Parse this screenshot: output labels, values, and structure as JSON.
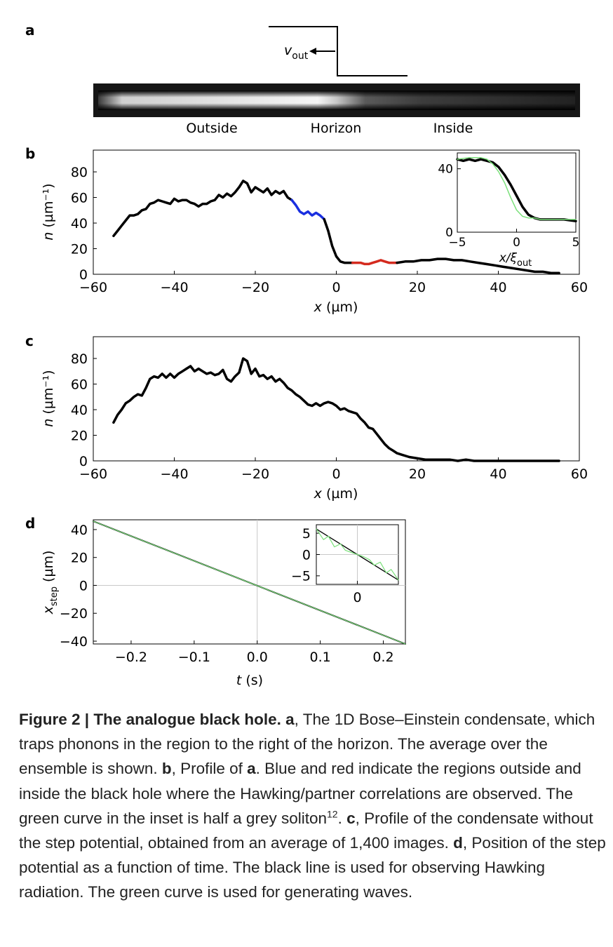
{
  "panel_labels": {
    "a": "a",
    "b": "b",
    "c": "c",
    "d": "d"
  },
  "panel_a": {
    "velocity_symbol": "v",
    "velocity_subscript": "out",
    "region_labels": [
      "Outside",
      "Horizon",
      "Inside"
    ]
  },
  "colors": {
    "profile": "#000000",
    "outside_region": "#1a2fe0",
    "inside_region": "#d42a1e",
    "soliton": "#7be07b",
    "grid": "#c8c8c8"
  },
  "axes": {
    "n_label_symbol": "n",
    "n_label_unit": "(µm⁻¹)",
    "x_label_symbol": "x",
    "x_label_unit": "(µm)",
    "inset_x_label": "x/ξ",
    "inset_x_subscript": "out",
    "d_y_symbol": "x",
    "d_y_subscript": "step",
    "d_y_unit": "(µm)",
    "d_x_symbol": "t",
    "d_x_unit": "(s)"
  },
  "chart_data": [
    {
      "id": "b",
      "type": "line",
      "xlabel": "x (µm)",
      "ylabel": "n (µm⁻¹)",
      "xlim": [
        -60,
        60
      ],
      "ylim": [
        0,
        97
      ],
      "xticks": [
        "−60",
        "−40",
        "−20",
        "0",
        "20",
        "40",
        "60"
      ],
      "yticks": [
        "0",
        "20",
        "40",
        "60",
        "80"
      ],
      "series": [
        {
          "name": "profile",
          "color": "#000000",
          "x": [
            -55,
            -54,
            -53,
            -52,
            -51,
            -50,
            -49,
            -48,
            -47,
            -46,
            -45,
            -44,
            -43,
            -42,
            -41,
            -40,
            -39,
            -38,
            -37,
            -36,
            -35,
            -34,
            -33,
            -32,
            -31,
            -30,
            -29,
            -28,
            -27,
            -26,
            -25,
            -24,
            -23,
            -22,
            -21,
            -20,
            -19,
            -18,
            -17,
            -16,
            -15,
            -14,
            -13,
            -12,
            -11
          ],
          "y": [
            30,
            34,
            38,
            42,
            46,
            46,
            47,
            50,
            51,
            55,
            56,
            58,
            57,
            56,
            55,
            59,
            57,
            58,
            58,
            56,
            55,
            53,
            55,
            55,
            57,
            58,
            62,
            60,
            63,
            61,
            64,
            68,
            73,
            71,
            64,
            68,
            66,
            64,
            67,
            62,
            65,
            63,
            65,
            60,
            58
          ]
        },
        {
          "name": "outside",
          "color": "#1a2fe0",
          "x": [
            -11,
            -10,
            -9,
            -8,
            -7,
            -6,
            -5,
            -4,
            -3
          ],
          "y": [
            58,
            54,
            49,
            47,
            49,
            46,
            48,
            46,
            43
          ]
        },
        {
          "name": "drop",
          "color": "#000000",
          "x": [
            -3,
            -2,
            -1,
            0,
            1,
            2,
            3,
            4
          ],
          "y": [
            43,
            34,
            22,
            14,
            10,
            9,
            9,
            9
          ]
        },
        {
          "name": "inside",
          "color": "#d42a1e",
          "x": [
            4,
            5,
            6,
            7,
            8,
            9,
            10,
            11,
            12,
            13,
            14,
            15
          ],
          "y": [
            9,
            9,
            9,
            8,
            8,
            9,
            10,
            11,
            10,
            9,
            9,
            9
          ]
        },
        {
          "name": "tail",
          "color": "#000000",
          "x": [
            15,
            17,
            19,
            21,
            23,
            25,
            27,
            29,
            31,
            33,
            35,
            37,
            39,
            41,
            43,
            45,
            47,
            49,
            51,
            53,
            55
          ],
          "y": [
            9,
            10,
            10,
            11,
            11,
            12,
            12,
            11,
            11,
            10,
            9,
            8,
            7,
            6,
            5,
            4,
            3,
            2,
            2,
            1,
            1
          ]
        }
      ],
      "inset": {
        "xlabel": "x/ξout",
        "xlim": [
          -5,
          5
        ],
        "ylim": [
          0,
          50
        ],
        "xticks": [
          "−5",
          "0",
          "5"
        ],
        "yticks": [
          "0",
          "40"
        ],
        "series": [
          {
            "name": "data",
            "color": "#000000",
            "x": [
              -5,
              -4.5,
              -4,
              -3.5,
              -3,
              -2.5,
              -2,
              -1.5,
              -1,
              -0.5,
              0,
              0.5,
              1,
              1.5,
              2,
              3,
              4,
              5
            ],
            "y": [
              46,
              45,
              46,
              45,
              46,
              45,
              44,
              41,
              36,
              30,
              23,
              16,
              11,
              9,
              8,
              8,
              8,
              7
            ]
          },
          {
            "name": "grey soliton",
            "color": "#7be07b",
            "x": [
              -5,
              -4,
              -3,
              -2.5,
              -2,
              -1.5,
              -1,
              -0.5,
              0,
              0.5,
              1,
              1.5,
              2,
              3,
              4,
              5
            ],
            "y": [
              46,
              47,
              47,
              46,
              43,
              38,
              31,
              22,
              14,
              10,
              9,
              9,
              8,
              8,
              8,
              8
            ]
          }
        ]
      }
    },
    {
      "id": "c",
      "type": "line",
      "xlabel": "x (µm)",
      "ylabel": "n (µm⁻¹)",
      "xlim": [
        -60,
        60
      ],
      "ylim": [
        0,
        97
      ],
      "xticks": [
        "−60",
        "−40",
        "−20",
        "0",
        "20",
        "40",
        "60"
      ],
      "yticks": [
        "0",
        "20",
        "40",
        "60",
        "80"
      ],
      "series": [
        {
          "name": "profile",
          "color": "#000000",
          "x": [
            -55,
            -54,
            -53,
            -52,
            -51,
            -50,
            -49,
            -48,
            -47,
            -46,
            -45,
            -44,
            -43,
            -42,
            -41,
            -40,
            -39,
            -38,
            -37,
            -36,
            -35,
            -34,
            -33,
            -32,
            -31,
            -30,
            -29,
            -28,
            -27,
            -26,
            -25,
            -24,
            -23,
            -22,
            -21,
            -20,
            -19,
            -18,
            -17,
            -16,
            -15,
            -14,
            -13,
            -12,
            -11,
            -10,
            -9,
            -8,
            -7,
            -6,
            -5,
            -4,
            -3,
            -2,
            -1,
            0,
            1,
            2,
            3,
            4,
            5,
            6,
            7,
            8,
            9,
            10,
            11,
            12,
            13,
            14,
            15,
            16,
            18,
            20,
            22,
            24,
            26,
            28,
            30,
            32,
            34,
            36,
            38,
            40,
            42,
            44,
            46,
            48,
            50,
            52,
            55
          ],
          "y": [
            30,
            36,
            40,
            45,
            47,
            50,
            52,
            51,
            57,
            64,
            66,
            65,
            68,
            65,
            68,
            65,
            68,
            70,
            72,
            74,
            70,
            72,
            70,
            68,
            69,
            67,
            68,
            71,
            64,
            62,
            66,
            69,
            80,
            78,
            68,
            72,
            66,
            67,
            64,
            66,
            62,
            64,
            61,
            57,
            55,
            52,
            50,
            47,
            44,
            43,
            45,
            43,
            45,
            46,
            45,
            43,
            40,
            41,
            39,
            38,
            37,
            33,
            30,
            26,
            25,
            21,
            17,
            13,
            10,
            8,
            6,
            5,
            3,
            2,
            1,
            1,
            1,
            1,
            0,
            1,
            0,
            0,
            0,
            0,
            0,
            0,
            0,
            0,
            0,
            0,
            0
          ]
        }
      ]
    },
    {
      "id": "d",
      "type": "line",
      "xlabel": "t (s)",
      "ylabel": "xstep (µm)",
      "xlim": [
        -0.26,
        0.235
      ],
      "ylim": [
        -42,
        47
      ],
      "xticks": [
        "−0.2",
        "−0.1",
        "0.0",
        "0.1",
        "0.2"
      ],
      "yticks": [
        "−40",
        "−20",
        "0",
        "20",
        "40"
      ],
      "series": [
        {
          "name": "Hawking line",
          "color": "#000000",
          "x": [
            -0.26,
            0.235
          ],
          "y": [
            46,
            -42
          ]
        },
        {
          "name": "wave generation",
          "color": "#7be07b",
          "x": [
            -0.26,
            0.235
          ],
          "y": [
            46,
            -42
          ]
        }
      ],
      "inset": {
        "xlim": [
          -0.034,
          0.034
        ],
        "ylim": [
          -7,
          7
        ],
        "xticks": [
          "0"
        ],
        "yticks": [
          "5",
          "0",
          "−5"
        ],
        "series": [
          {
            "name": "Hawking line",
            "color": "#000000",
            "x": [
              -0.034,
              0.034
            ],
            "y": [
              6,
              -6
            ]
          },
          {
            "name": "wave generation",
            "color": "#7be07b",
            "x": [
              -0.034,
              -0.028,
              -0.024,
              -0.019,
              -0.014,
              -0.01,
              -0.005,
              0.0,
              0.005,
              0.01,
              0.014,
              0.019,
              0.024,
              0.028,
              0.034
            ],
            "y": [
              6,
              3.5,
              4.3,
              1.8,
              2.5,
              1.0,
              0.5,
              0.0,
              -0.5,
              -1.2,
              -2.5,
              -1.8,
              -4.3,
              -3.5,
              -6
            ]
          }
        ]
      }
    }
  ],
  "caption": {
    "figure_label": "Figure 2 | The analogue black hole.",
    "a_ref": "a",
    "a_text": ", The 1D Bose–Einstein condensate, which traps phonons in the region to the right of the horizon. The average over the ensemble is shown. ",
    "b_ref": "b",
    "b_text1": ", Profile of ",
    "b_ref_a": "a",
    "b_text2": ". Blue and red indicate the regions outside and inside the black hole where the Hawking/partner correlations are observed. The green curve in the inset is half a grey soliton",
    "b_citation": "12",
    "b_text3": ". ",
    "c_ref": "c",
    "c_text": ", Profile of the condensate without the step potential, obtained from an average of 1,400 images. ",
    "d_ref": "d",
    "d_text": ", Position of the step potential as a function of time. The black line is used for observing Hawking radiation. The green curve is used for generating waves."
  }
}
